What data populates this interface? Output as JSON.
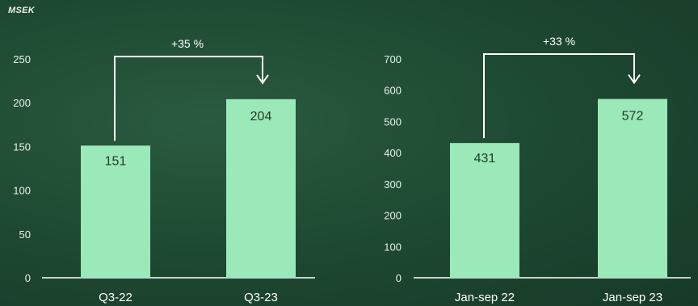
{
  "unit_label": "MSEK",
  "colors": {
    "bar": "#9be8b8",
    "text": "#ffffff",
    "value_text": "#1d3b2a",
    "axis": "#ffffff"
  },
  "chart_data": [
    {
      "type": "bar",
      "categories": [
        "Q3-22",
        "Q3-23"
      ],
      "values": [
        151,
        204
      ],
      "value_labels": [
        "151",
        "204"
      ],
      "ylim": [
        0,
        250
      ],
      "yticks": [
        0,
        50,
        100,
        150,
        200,
        250
      ],
      "ytick_labels": [
        "0",
        "50",
        "100",
        "150",
        "200",
        "250"
      ],
      "change_label": "+35 %",
      "grid": false,
      "legend": "none"
    },
    {
      "type": "bar",
      "categories": [
        "Jan-sep 22",
        "Jan-sep 23"
      ],
      "values": [
        431,
        572
      ],
      "value_labels": [
        "431",
        "572"
      ],
      "ylim": [
        0,
        700
      ],
      "yticks": [
        0,
        100,
        200,
        300,
        400,
        500,
        600,
        700
      ],
      "ytick_labels": [
        "0",
        "100",
        "200",
        "300",
        "400",
        "500",
        "600",
        "700"
      ],
      "change_label": "+33 %",
      "grid": false,
      "legend": "none"
    }
  ]
}
